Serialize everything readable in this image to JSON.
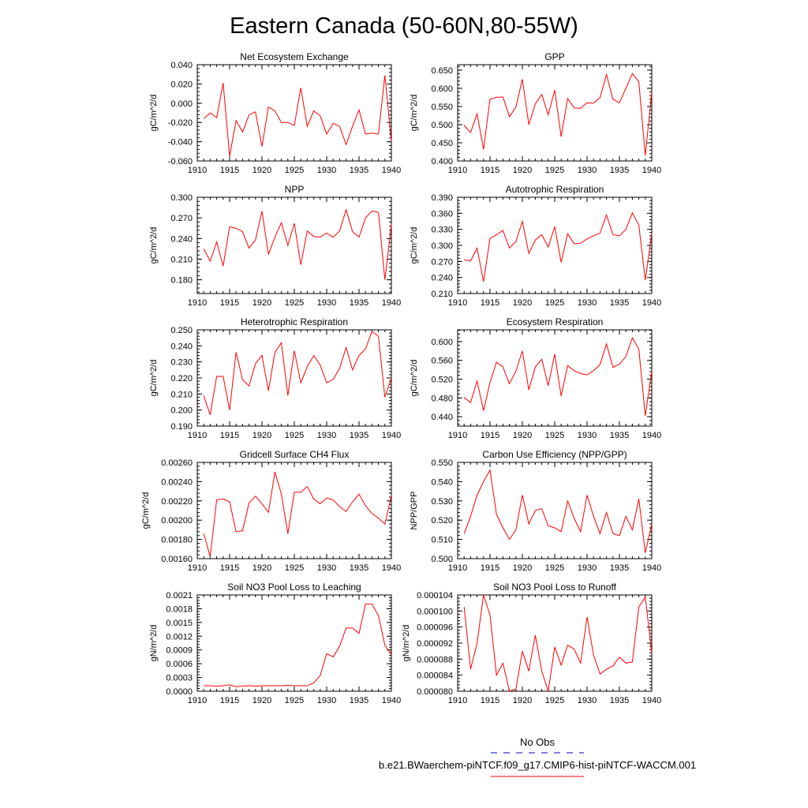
{
  "figure": {
    "title": "Eastern Canada (50-60N,80-55W)",
    "line_color": "#ff0000",
    "obs_color": "#0000cc"
  },
  "legend": {
    "obs_label": "No Obs",
    "case_label": "b.e21.BWaerchem-piNTCF.f09_g17.CMIP6-hist-piNTCF-WACCM.001"
  },
  "chart_data": [
    {
      "type": "line",
      "title": "Net Ecosystem Exchange",
      "ylabel": "gC/m^2/d",
      "xlim": [
        1910,
        1940
      ],
      "ylim": [
        -0.06,
        0.04
      ],
      "x_ticks": [
        1910,
        1915,
        1920,
        1925,
        1930,
        1935,
        1940
      ],
      "x_tick_labels": [
        "1910",
        "1915",
        "1920",
        "1925",
        "1930",
        "1935",
        "1940"
      ],
      "y_ticks": [
        -0.06,
        -0.04,
        -0.02,
        0.0,
        0.02,
        0.04
      ],
      "y_tick_labels": [
        "-0.060",
        "-0.040",
        "-0.020",
        "0.000",
        "0.020",
        "0.040"
      ],
      "x": [
        1911,
        1912,
        1913,
        1914,
        1915,
        1916,
        1917,
        1918,
        1919,
        1920,
        1921,
        1922,
        1923,
        1924,
        1925,
        1926,
        1927,
        1928,
        1929,
        1930,
        1931,
        1932,
        1933,
        1934,
        1935,
        1936,
        1937,
        1938,
        1939,
        1940
      ],
      "values": [
        -0.016,
        -0.01,
        -0.015,
        0.021,
        -0.055,
        -0.018,
        -0.03,
        -0.012,
        -0.009,
        -0.045,
        -0.004,
        -0.008,
        -0.02,
        -0.02,
        -0.023,
        0.016,
        -0.024,
        -0.008,
        -0.013,
        -0.032,
        -0.021,
        -0.024,
        -0.043,
        -0.024,
        -0.007,
        -0.032,
        -0.031,
        -0.032,
        0.029,
        -0.04
      ]
    },
    {
      "type": "line",
      "title": "GPP",
      "ylabel": "gC/m^2/d",
      "xlim": [
        1910,
        1940
      ],
      "ylim": [
        0.4,
        0.665
      ],
      "x_ticks": [
        1910,
        1915,
        1920,
        1925,
        1930,
        1935,
        1940
      ],
      "x_tick_labels": [
        "1910",
        "1915",
        "1920",
        "1925",
        "1930",
        "1935",
        "1940"
      ],
      "y_ticks": [
        0.4,
        0.45,
        0.5,
        0.55,
        0.6,
        0.65
      ],
      "y_tick_labels": [
        "0.400",
        "0.450",
        "0.500",
        "0.550",
        "0.600",
        "0.650"
      ],
      "x": [
        1911,
        1912,
        1913,
        1914,
        1915,
        1916,
        1917,
        1918,
        1919,
        1920,
        1921,
        1922,
        1923,
        1924,
        1925,
        1926,
        1927,
        1928,
        1929,
        1930,
        1931,
        1932,
        1933,
        1934,
        1935,
        1936,
        1937,
        1938,
        1939,
        1940
      ],
      "values": [
        0.498,
        0.478,
        0.53,
        0.432,
        0.57,
        0.575,
        0.576,
        0.522,
        0.548,
        0.625,
        0.5,
        0.557,
        0.583,
        0.527,
        0.595,
        0.467,
        0.572,
        0.546,
        0.545,
        0.56,
        0.559,
        0.574,
        0.638,
        0.57,
        0.56,
        0.6,
        0.641,
        0.618,
        0.415,
        0.59
      ]
    },
    {
      "type": "line",
      "title": "NPP",
      "ylabel": "gC/m^2/d",
      "xlim": [
        1910,
        1940
      ],
      "ylim": [
        0.16,
        0.3
      ],
      "x_ticks": [
        1910,
        1915,
        1920,
        1925,
        1930,
        1935,
        1940
      ],
      "x_tick_labels": [
        "1910",
        "1915",
        "1920",
        "1925",
        "1930",
        "1935",
        "1940"
      ],
      "y_ticks": [
        0.18,
        0.21,
        0.24,
        0.27,
        0.3
      ],
      "y_tick_labels": [
        "0.180",
        "0.210",
        "0.240",
        "0.270",
        "0.300"
      ],
      "x": [
        1911,
        1912,
        1913,
        1914,
        1915,
        1916,
        1917,
        1918,
        1919,
        1920,
        1921,
        1922,
        1923,
        1924,
        1925,
        1926,
        1927,
        1928,
        1929,
        1930,
        1931,
        1932,
        1933,
        1934,
        1935,
        1936,
        1937,
        1938,
        1939,
        1940
      ],
      "values": [
        0.225,
        0.207,
        0.235,
        0.2,
        0.257,
        0.255,
        0.25,
        0.226,
        0.238,
        0.28,
        0.217,
        0.242,
        0.263,
        0.23,
        0.262,
        0.202,
        0.251,
        0.243,
        0.242,
        0.248,
        0.242,
        0.251,
        0.282,
        0.25,
        0.242,
        0.27,
        0.28,
        0.278,
        0.18,
        0.26
      ]
    },
    {
      "type": "line",
      "title": "Autotrophic Respiration",
      "ylabel": "gC/m^2/d",
      "xlim": [
        1910,
        1940
      ],
      "ylim": [
        0.21,
        0.39
      ],
      "x_ticks": [
        1910,
        1915,
        1920,
        1925,
        1930,
        1935,
        1940
      ],
      "x_tick_labels": [
        "1910",
        "1915",
        "1920",
        "1925",
        "1930",
        "1935",
        "1940"
      ],
      "y_ticks": [
        0.21,
        0.24,
        0.27,
        0.3,
        0.33,
        0.36,
        0.39
      ],
      "y_tick_labels": [
        "0.210",
        "0.240",
        "0.270",
        "0.300",
        "0.330",
        "0.360",
        "0.390"
      ],
      "x": [
        1911,
        1912,
        1913,
        1914,
        1915,
        1916,
        1917,
        1918,
        1919,
        1920,
        1921,
        1922,
        1923,
        1924,
        1925,
        1926,
        1927,
        1928,
        1929,
        1930,
        1931,
        1932,
        1933,
        1934,
        1935,
        1936,
        1937,
        1938,
        1939,
        1940
      ],
      "values": [
        0.273,
        0.271,
        0.295,
        0.232,
        0.313,
        0.32,
        0.328,
        0.295,
        0.307,
        0.345,
        0.285,
        0.31,
        0.32,
        0.297,
        0.335,
        0.268,
        0.322,
        0.303,
        0.304,
        0.312,
        0.318,
        0.323,
        0.357,
        0.32,
        0.318,
        0.33,
        0.361,
        0.338,
        0.235,
        0.322
      ]
    },
    {
      "type": "line",
      "title": "Heterotrophic Respiration",
      "ylabel": "gC/m^2/d",
      "xlim": [
        1910,
        1940
      ],
      "ylim": [
        0.19,
        0.25
      ],
      "x_ticks": [
        1910,
        1915,
        1920,
        1925,
        1930,
        1935,
        1940
      ],
      "x_tick_labels": [
        "1910",
        "1915",
        "1920",
        "1925",
        "1930",
        "1935",
        "1940"
      ],
      "y_ticks": [
        0.19,
        0.2,
        0.21,
        0.22,
        0.23,
        0.24,
        0.25
      ],
      "y_tick_labels": [
        "0.190",
        "0.200",
        "0.210",
        "0.220",
        "0.230",
        "0.240",
        "0.250"
      ],
      "x": [
        1911,
        1912,
        1913,
        1914,
        1915,
        1916,
        1917,
        1918,
        1919,
        1920,
        1921,
        1922,
        1923,
        1924,
        1925,
        1926,
        1927,
        1928,
        1929,
        1930,
        1931,
        1932,
        1933,
        1934,
        1935,
        1936,
        1937,
        1938,
        1939,
        1940
      ],
      "values": [
        0.209,
        0.197,
        0.221,
        0.221,
        0.2,
        0.236,
        0.219,
        0.215,
        0.229,
        0.234,
        0.212,
        0.236,
        0.242,
        0.209,
        0.237,
        0.217,
        0.227,
        0.234,
        0.228,
        0.217,
        0.219,
        0.226,
        0.239,
        0.225,
        0.234,
        0.238,
        0.249,
        0.246,
        0.208,
        0.22
      ]
    },
    {
      "type": "line",
      "title": "Ecosystem Respiration",
      "ylabel": "gC/m^2/d",
      "xlim": [
        1910,
        1940
      ],
      "ylim": [
        0.42,
        0.625
      ],
      "x_ticks": [
        1910,
        1915,
        1920,
        1925,
        1930,
        1935,
        1940
      ],
      "x_tick_labels": [
        "1910",
        "1915",
        "1920",
        "1925",
        "1930",
        "1935",
        "1940"
      ],
      "y_ticks": [
        0.44,
        0.48,
        0.52,
        0.56,
        0.6
      ],
      "y_tick_labels": [
        "0.440",
        "0.480",
        "0.520",
        "0.560",
        "0.600"
      ],
      "x": [
        1911,
        1912,
        1913,
        1914,
        1915,
        1916,
        1917,
        1918,
        1919,
        1920,
        1921,
        1922,
        1923,
        1924,
        1925,
        1926,
        1927,
        1928,
        1929,
        1930,
        1931,
        1932,
        1933,
        1934,
        1935,
        1936,
        1937,
        1938,
        1939,
        1940
      ],
      "values": [
        0.481,
        0.47,
        0.516,
        0.453,
        0.513,
        0.556,
        0.546,
        0.51,
        0.537,
        0.58,
        0.497,
        0.546,
        0.562,
        0.506,
        0.573,
        0.484,
        0.549,
        0.538,
        0.532,
        0.529,
        0.538,
        0.551,
        0.595,
        0.545,
        0.552,
        0.568,
        0.608,
        0.584,
        0.442,
        0.537
      ]
    },
    {
      "type": "line",
      "title": "Gridcell Surface CH4 Flux",
      "ylabel": "gC/m^2/d",
      "xlim": [
        1910,
        1940
      ],
      "ylim": [
        0.0016,
        0.0026
      ],
      "x_ticks": [
        1910,
        1915,
        1920,
        1925,
        1930,
        1935,
        1940
      ],
      "x_tick_labels": [
        "1910",
        "1915",
        "1920",
        "1925",
        "1930",
        "1935",
        "1940"
      ],
      "y_ticks": [
        0.0016,
        0.0018,
        0.002,
        0.0022,
        0.0024,
        0.0026
      ],
      "y_tick_labels": [
        "0.00160",
        "0.00180",
        "0.00200",
        "0.00220",
        "0.00240",
        "0.00260"
      ],
      "x": [
        1911,
        1912,
        1913,
        1914,
        1915,
        1916,
        1917,
        1918,
        1919,
        1920,
        1921,
        1922,
        1923,
        1924,
        1925,
        1926,
        1927,
        1928,
        1929,
        1930,
        1931,
        1932,
        1933,
        1934,
        1935,
        1936,
        1937,
        1938,
        1939,
        1940
      ],
      "values": [
        0.00186,
        0.00162,
        0.00221,
        0.00222,
        0.00219,
        0.00188,
        0.00189,
        0.00218,
        0.00225,
        0.00217,
        0.00208,
        0.0025,
        0.00227,
        0.00186,
        0.00229,
        0.00229,
        0.00235,
        0.00222,
        0.00217,
        0.00223,
        0.00221,
        0.00214,
        0.00209,
        0.00219,
        0.00227,
        0.00215,
        0.00207,
        0.00202,
        0.00196,
        0.00226
      ]
    },
    {
      "type": "line",
      "title": "Carbon Use Efficiency (NPP/GPP)",
      "ylabel": "NPP/GPP",
      "xlim": [
        1910,
        1940
      ],
      "ylim": [
        0.5,
        0.55
      ],
      "x_ticks": [
        1910,
        1915,
        1920,
        1925,
        1930,
        1935,
        1940
      ],
      "x_tick_labels": [
        "1910",
        "1915",
        "1920",
        "1925",
        "1930",
        "1935",
        "1940"
      ],
      "y_ticks": [
        0.5,
        0.51,
        0.52,
        0.53,
        0.54,
        0.55
      ],
      "y_tick_labels": [
        "0.500",
        "0.510",
        "0.520",
        "0.530",
        "0.540",
        "0.550"
      ],
      "x": [
        1911,
        1912,
        1913,
        1914,
        1915,
        1916,
        1917,
        1918,
        1919,
        1920,
        1921,
        1922,
        1923,
        1924,
        1925,
        1926,
        1927,
        1928,
        1929,
        1930,
        1931,
        1932,
        1933,
        1934,
        1935,
        1936,
        1937,
        1938,
        1939,
        1940
      ],
      "values": [
        0.513,
        0.522,
        0.533,
        0.54,
        0.546,
        0.523,
        0.516,
        0.51,
        0.515,
        0.533,
        0.518,
        0.525,
        0.526,
        0.517,
        0.516,
        0.514,
        0.53,
        0.521,
        0.514,
        0.533,
        0.522,
        0.513,
        0.524,
        0.513,
        0.512,
        0.522,
        0.515,
        0.531,
        0.503,
        0.518
      ]
    },
    {
      "type": "line",
      "title": "Soil NO3 Pool Loss to Leaching",
      "ylabel": "gN/m^2/d",
      "xlim": [
        1910,
        1940
      ],
      "ylim": [
        0.0,
        0.0021
      ],
      "x_ticks": [
        1910,
        1915,
        1920,
        1925,
        1930,
        1935,
        1940
      ],
      "x_tick_labels": [
        "1910",
        "1915",
        "1920",
        "1925",
        "1930",
        "1935",
        "1940"
      ],
      "y_ticks": [
        0.0,
        0.0003,
        0.0006,
        0.0009,
        0.0012,
        0.0015,
        0.0018,
        0.0021
      ],
      "y_tick_labels": [
        "0.0000",
        "0.0003",
        "0.0006",
        "0.0009",
        "0.0012",
        "0.0015",
        "0.0018",
        "0.0021"
      ],
      "x": [
        1911,
        1912,
        1913,
        1914,
        1915,
        1916,
        1917,
        1918,
        1919,
        1920,
        1921,
        1922,
        1923,
        1924,
        1925,
        1926,
        1927,
        1928,
        1929,
        1930,
        1931,
        1932,
        1933,
        1934,
        1935,
        1936,
        1937,
        1938,
        1939,
        1940
      ],
      "values": [
        0.00012,
        0.00012,
        0.00011,
        0.00012,
        0.00014,
        0.0001,
        0.00011,
        0.00012,
        0.00011,
        0.00012,
        0.00012,
        0.00012,
        0.00012,
        0.00013,
        0.00012,
        0.00012,
        0.00012,
        0.00018,
        0.00034,
        0.00082,
        0.00075,
        0.00098,
        0.00138,
        0.00138,
        0.00126,
        0.0019,
        0.0019,
        0.00165,
        0.001,
        0.0008
      ]
    },
    {
      "type": "line",
      "title": "Soil NO3 Pool Loss to Runoff",
      "ylabel": "gN/m^2/d",
      "xlim": [
        1910,
        1940
      ],
      "ylim": [
        8e-05,
        0.000104
      ],
      "x_ticks": [
        1910,
        1915,
        1920,
        1925,
        1930,
        1935,
        1940
      ],
      "x_tick_labels": [
        "1910",
        "1915",
        "1920",
        "1925",
        "1930",
        "1935",
        "1940"
      ],
      "y_ticks": [
        8e-05,
        8.4e-05,
        8.8e-05,
        9.2e-05,
        9.6e-05,
        0.0001,
        0.000104
      ],
      "y_tick_labels": [
        "0.000080",
        "0.000084",
        "0.000088",
        "0.000092",
        "0.000096",
        "0.000100",
        "0.000104"
      ],
      "x": [
        1911,
        1912,
        1913,
        1914,
        1915,
        1916,
        1917,
        1918,
        1919,
        1920,
        1921,
        1922,
        1923,
        1924,
        1925,
        1926,
        1927,
        1928,
        1929,
        1930,
        1931,
        1932,
        1933,
        1934,
        1935,
        1936,
        1937,
        1938,
        1939,
        1940
      ],
      "values": [
        0.000101,
        8.55e-05,
        9.2e-05,
        0.000104,
        9.9e-05,
        8.4e-05,
        8.7e-05,
        8e-05,
        8.05e-05,
        9e-05,
        8.5e-05,
        9.4e-05,
        8.5e-05,
        8e-05,
        9.1e-05,
        8.65e-05,
        9.15e-05,
        9.05e-05,
        8.7e-05,
        9.85e-05,
        8.9e-05,
        8.43e-05,
        8.55e-05,
        8.63e-05,
        8.85e-05,
        8.7e-05,
        8.73e-05,
        0.000101,
        0.0001035,
        8.95e-05
      ]
    }
  ]
}
